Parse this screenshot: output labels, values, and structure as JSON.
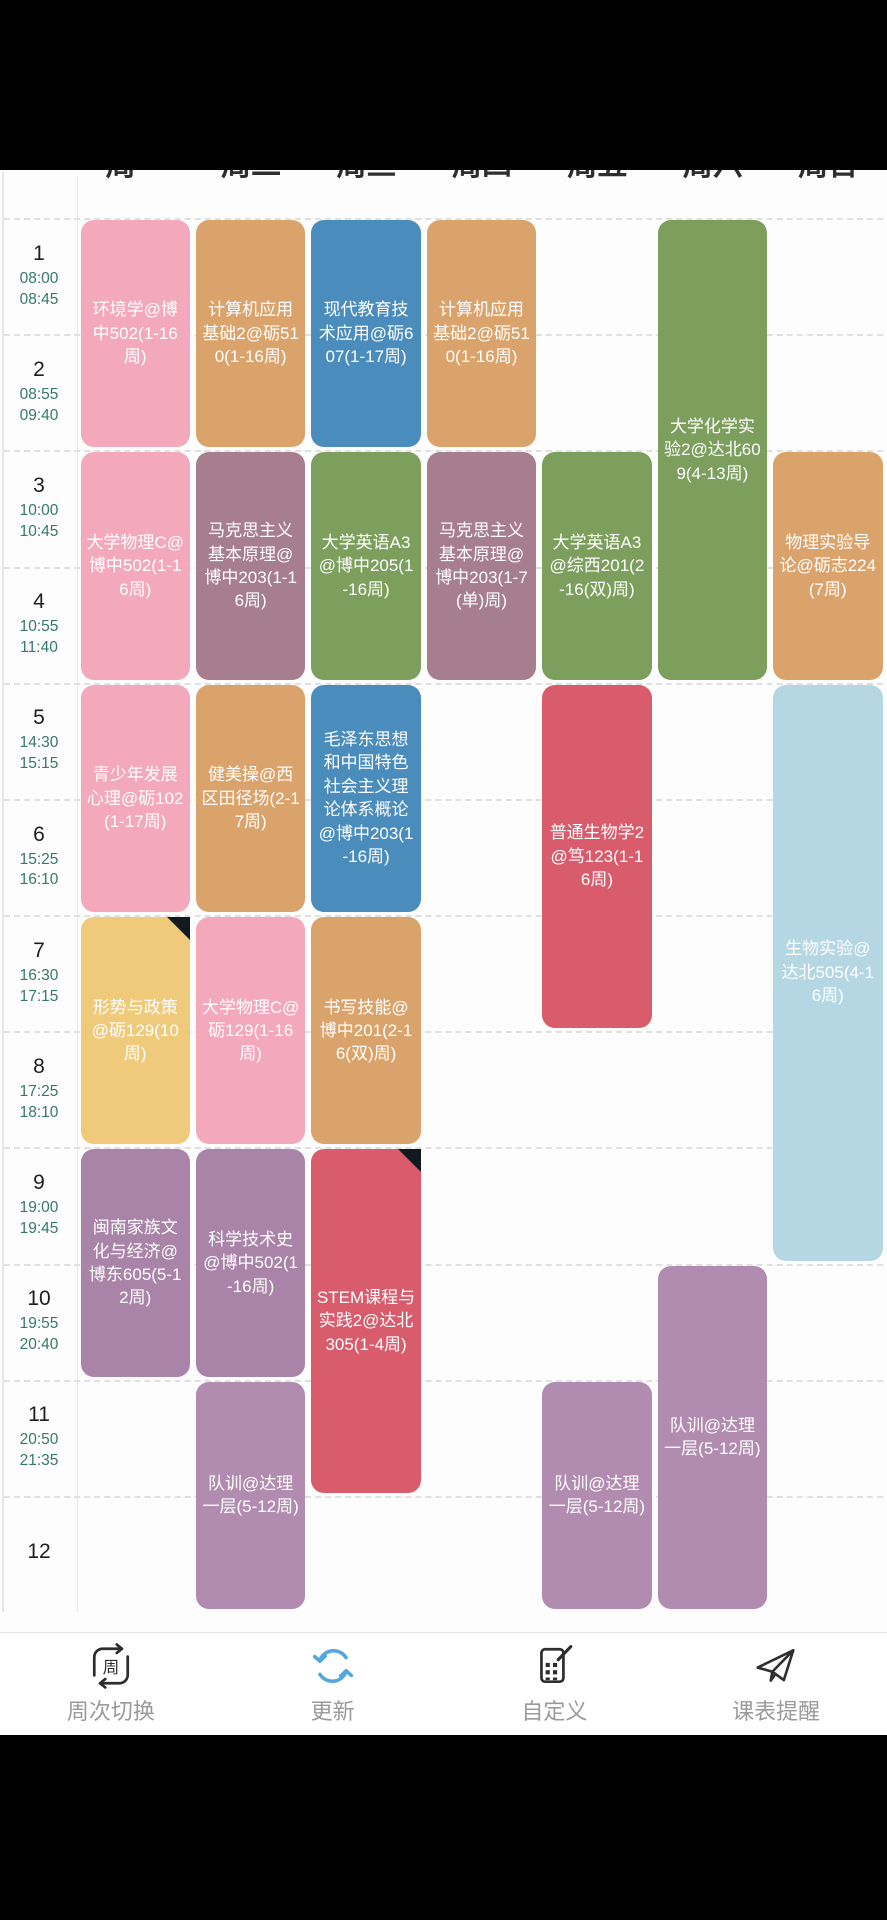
{
  "header": {
    "days": [
      "周一",
      "周二",
      "周三",
      "周四",
      "周五",
      "周六",
      "周日"
    ]
  },
  "periods": [
    {
      "no": "1",
      "start": "08:00",
      "end": "08:45"
    },
    {
      "no": "2",
      "start": "08:55",
      "end": "09:40"
    },
    {
      "no": "3",
      "start": "10:00",
      "end": "10:45"
    },
    {
      "no": "4",
      "start": "10:55",
      "end": "11:40"
    },
    {
      "no": "5",
      "start": "14:30",
      "end": "15:15"
    },
    {
      "no": "6",
      "start": "15:25",
      "end": "16:10"
    },
    {
      "no": "7",
      "start": "16:30",
      "end": "17:15"
    },
    {
      "no": "8",
      "start": "17:25",
      "end": "18:10"
    },
    {
      "no": "9",
      "start": "19:00",
      "end": "19:45"
    },
    {
      "no": "10",
      "start": "19:55",
      "end": "20:40"
    },
    {
      "no": "11",
      "start": "20:50",
      "end": "21:35"
    },
    {
      "no": "12",
      "start": "",
      "end": ""
    }
  ],
  "colors": {
    "pink": "#F3A8BC",
    "tan": "#DBA36C",
    "blue": "#4A8CBC",
    "mauve": "#A67E8D",
    "green": "#7C9F5D",
    "red": "#D85C6C",
    "yellow": "#EFCA7B",
    "purple": "#A983A8",
    "purple_light": "#B28CB0",
    "light_blue": "#B5D7E3"
  },
  "courses": [
    {
      "day": 1,
      "start": 1,
      "span": 2,
      "color": "pink",
      "text": "环境学@博中502(1-16周)"
    },
    {
      "day": 1,
      "start": 3,
      "span": 2,
      "color": "pink",
      "text": "大学物理C@博中502(1-16周)"
    },
    {
      "day": 1,
      "start": 5,
      "span": 2,
      "color": "pink",
      "text": "青少年发展心理@砺102(1-17周)"
    },
    {
      "day": 1,
      "start": 7,
      "span": 2,
      "color": "yellow",
      "text": "形势与政策@砺129(10周)",
      "corner": true
    },
    {
      "day": 1,
      "start": 9,
      "span": 2,
      "color": "purple",
      "text": "闽南家族文化与经济@博东605(5-12周)"
    },
    {
      "day": 2,
      "start": 1,
      "span": 2,
      "color": "tan",
      "text": "计算机应用基础2@砺510(1-16周)"
    },
    {
      "day": 2,
      "start": 3,
      "span": 2,
      "color": "mauve",
      "text": "马克思主义基本原理@博中203(1-16周)"
    },
    {
      "day": 2,
      "start": 5,
      "span": 2,
      "color": "tan",
      "text": "健美操@西区田径场(2-17周)"
    },
    {
      "day": 2,
      "start": 7,
      "span": 2,
      "color": "pink",
      "text": "大学物理C@砺129(1-16周)"
    },
    {
      "day": 2,
      "start": 9,
      "span": 2,
      "color": "purple",
      "text": "科学技术史@博中502(1-16周)"
    },
    {
      "day": 2,
      "start": 11,
      "span": 2,
      "color": "purple_light",
      "text": "队训@达理一层(5-12周)"
    },
    {
      "day": 3,
      "start": 1,
      "span": 2,
      "color": "blue",
      "text": "现代教育技术应用@砺607(1-17周)"
    },
    {
      "day": 3,
      "start": 3,
      "span": 2,
      "color": "green",
      "text": "大学英语A3@博中205(1-16周)"
    },
    {
      "day": 3,
      "start": 5,
      "span": 2,
      "color": "blue",
      "text": "毛泽东思想和中国特色社会主义理论体系概论@博中203(1-16周)"
    },
    {
      "day": 3,
      "start": 7,
      "span": 2,
      "color": "tan",
      "text": "书写技能@博中201(2-16(双)周)"
    },
    {
      "day": 3,
      "start": 9,
      "span": 3,
      "color": "red",
      "text": "STEM课程与实践2@达北305(1-4周)",
      "corner": true
    },
    {
      "day": 4,
      "start": 1,
      "span": 2,
      "color": "tan",
      "text": "计算机应用基础2@砺510(1-16周)"
    },
    {
      "day": 4,
      "start": 3,
      "span": 2,
      "color": "mauve",
      "text": "马克思主义基本原理@博中203(1-7(单)周)"
    },
    {
      "day": 5,
      "start": 3,
      "span": 2,
      "color": "green",
      "text": "大学英语A3@综西201(2-16(双)周)"
    },
    {
      "day": 5,
      "start": 5,
      "span": 3,
      "color": "red",
      "text": "普通生物学2@笃123(1-16周)"
    },
    {
      "day": 5,
      "start": 11,
      "span": 2,
      "color": "purple_light",
      "text": "队训@达理一层(5-12周)"
    },
    {
      "day": 6,
      "start": 1,
      "span": 4,
      "color": "green",
      "text": "大学化学实验2@达北609(4-13周)"
    },
    {
      "day": 6,
      "start": 10,
      "span": 3,
      "color": "purple_light",
      "text": "队训@达理一层(5-12周)"
    },
    {
      "day": 7,
      "start": 3,
      "span": 2,
      "color": "tan",
      "text": "物理实验导论@砺志224(7周)"
    },
    {
      "day": 7,
      "start": 5,
      "span": 5,
      "color": "light_blue",
      "text": "生物实验@达北505(4-16周)"
    }
  ],
  "toolbar": {
    "items": [
      {
        "label": "周次切换",
        "glyph": "周"
      },
      {
        "label": "更新"
      },
      {
        "label": "自定义"
      },
      {
        "label": "课表提醒"
      }
    ]
  }
}
